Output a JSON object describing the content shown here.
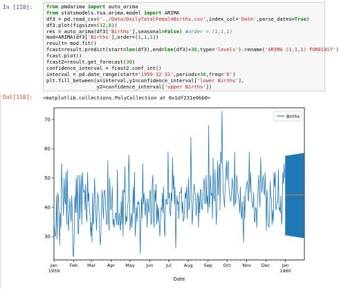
{
  "input_prompt": "In [110]:",
  "output_prompt": "Out[110]:",
  "code_lines": [
    [
      {
        "t": "from",
        "c": "kw"
      },
      {
        "t": " pmdarima ",
        "c": "txt"
      },
      {
        "t": "import",
        "c": "kw"
      },
      {
        "t": " auto_arima",
        "c": "txt"
      }
    ],
    [
      {
        "t": "from",
        "c": "kw"
      },
      {
        "t": " statsmodels.tsa.arima.model ",
        "c": "txt"
      },
      {
        "t": "import",
        "c": "kw"
      },
      {
        "t": " ARIMA",
        "c": "txt"
      }
    ],
    [
      {
        "t": "df3 = pd.read_csv(",
        "c": "txt"
      },
      {
        "t": "'../Data/DailyTotalFemaleBirths.csv'",
        "c": "str"
      },
      {
        "t": ",index_col=",
        "c": "txt"
      },
      {
        "t": "'Date'",
        "c": "str"
      },
      {
        "t": ",parse_dates=",
        "c": "txt"
      },
      {
        "t": "True",
        "c": "kw"
      },
      {
        "t": ")",
        "c": "txt"
      }
    ],
    [
      {
        "t": "df3.plot(figsize=(",
        "c": "txt"
      },
      {
        "t": "12",
        "c": "num"
      },
      {
        "t": ",",
        "c": "txt"
      },
      {
        "t": "8",
        "c": "num"
      },
      {
        "t": "))",
        "c": "txt"
      }
    ],
    [
      {
        "t": "res = auto_arima(df3[",
        "c": "txt"
      },
      {
        "t": "'Births'",
        "c": "str"
      },
      {
        "t": "],seasonal=",
        "c": "txt"
      },
      {
        "t": "False",
        "c": "kw"
      },
      {
        "t": ") ",
        "c": "txt"
      },
      {
        "t": "#order = (1,1,1)",
        "c": "cmt"
      }
    ],
    [
      {
        "t": "mod=ARIMA(df3[",
        "c": "txt"
      },
      {
        "t": "'Births'",
        "c": "str"
      },
      {
        "t": "],order=(",
        "c": "txt"
      },
      {
        "t": "1",
        "c": "num"
      },
      {
        "t": ",",
        "c": "txt"
      },
      {
        "t": "1",
        "c": "num"
      },
      {
        "t": ",",
        "c": "txt"
      },
      {
        "t": "1",
        "c": "num"
      },
      {
        "t": "))",
        "c": "txt"
      }
    ],
    [
      {
        "t": "result= mod.fit()",
        "c": "txt"
      }
    ],
    [
      {
        "t": "fcast=result.predict(start=",
        "c": "txt"
      },
      {
        "t": "len",
        "c": "kw"
      },
      {
        "t": "(df3),end=",
        "c": "txt"
      },
      {
        "t": "len",
        "c": "kw"
      },
      {
        "t": "(df3)+",
        "c": "txt"
      },
      {
        "t": "30",
        "c": "num"
      },
      {
        "t": ",type=",
        "c": "txt"
      },
      {
        "t": "'levels'",
        "c": "str"
      },
      {
        "t": ").rename(",
        "c": "txt"
      },
      {
        "t": "'ARIMA (1,1,1) FORECAST'",
        "c": "str"
      },
      {
        "t": ")",
        "c": "txt"
      }
    ],
    [
      {
        "t": "fcast.plot()",
        "c": "txt"
      }
    ],
    [
      {
        "t": "fcast2=result.get_forecast(",
        "c": "txt"
      },
      {
        "t": "30",
        "c": "num"
      },
      {
        "t": ")",
        "c": "txt"
      }
    ],
    [
      {
        "t": "confidence_interval = fcast2.conf_int()",
        "c": "txt"
      }
    ],
    [
      {
        "t": "interval = pd.date_range(start=",
        "c": "txt"
      },
      {
        "t": "'1959-12-31'",
        "c": "str"
      },
      {
        "t": ",periods=",
        "c": "txt"
      },
      {
        "t": "30",
        "c": "num"
      },
      {
        "t": ",freq=",
        "c": "txt"
      },
      {
        "t": "'D'",
        "c": "str"
      },
      {
        "t": ")",
        "c": "txt"
      }
    ],
    [
      {
        "t": "plt.fill_between(x=interval,y1=confidence_interval[",
        "c": "txt"
      },
      {
        "t": "'lower Births'",
        "c": "str"
      },
      {
        "t": "],",
        "c": "txt"
      }
    ],
    [
      {
        "t": "                 y2=confidence_interval[",
        "c": "txt"
      },
      {
        "t": "'upper Births'",
        "c": "str"
      },
      {
        "t": "])",
        "c": "txt"
      }
    ]
  ],
  "output_text": "<matplotlib.collections.PolyCollection at 0x1df231e0bb0>",
  "colors": {
    "line": "#1f77b4",
    "fill": "#1f77b4",
    "forecast": "#ff7f0e"
  },
  "chart_data": {
    "type": "line",
    "xlabel": "Date",
    "ylabel": "",
    "ylim": [
      22,
      74
    ],
    "yticks": [
      30,
      40,
      50,
      60,
      70
    ],
    "x_range": [
      0,
      395
    ],
    "x_ticks": [
      {
        "label": "Jan",
        "sub": "1959",
        "day": 0
      },
      {
        "label": "Feb",
        "sub": "",
        "day": 31
      },
      {
        "label": "Mar",
        "sub": "",
        "day": 59
      },
      {
        "label": "Apr",
        "sub": "",
        "day": 90
      },
      {
        "label": "May",
        "sub": "",
        "day": 120
      },
      {
        "label": "Jun",
        "sub": "",
        "day": 151
      },
      {
        "label": "Jul",
        "sub": "",
        "day": 181
      },
      {
        "label": "Aug",
        "sub": "",
        "day": 212
      },
      {
        "label": "Sep",
        "sub": "",
        "day": 243
      },
      {
        "label": "Oct",
        "sub": "",
        "day": 273
      },
      {
        "label": "Nov",
        "sub": "",
        "day": 304
      },
      {
        "label": "Dec",
        "sub": "",
        "day": 334
      },
      {
        "label": "Jan",
        "sub": "1960",
        "day": 365
      }
    ],
    "legend": {
      "entries": [
        "Births"
      ],
      "placement": "top-right"
    },
    "series": [
      {
        "name": "Births",
        "values": [
          35,
          32,
          30,
          31,
          44,
          29,
          45,
          43,
          38,
          27,
          38,
          33,
          55,
          47,
          45,
          37,
          50,
          43,
          41,
          52,
          34,
          53,
          39,
          32,
          37,
          43,
          39,
          35,
          44,
          38,
          24,
          23,
          31,
          44,
          38,
          50,
          38,
          51,
          31,
          31,
          51,
          36,
          45,
          51,
          34,
          52,
          47,
          45,
          46,
          39,
          48,
          37,
          35,
          52,
          42,
          45,
          39,
          37,
          30,
          35,
          28,
          45,
          34,
          36,
          50,
          44,
          39,
          32,
          39,
          45,
          43,
          39,
          31,
          27,
          30,
          42,
          46,
          41,
          36,
          45,
          46,
          43,
          38,
          34,
          35,
          56,
          36,
          32,
          50,
          41,
          39,
          41,
          47,
          34,
          36,
          33,
          35,
          38,
          38,
          34,
          53,
          34,
          34,
          38,
          35,
          32,
          42,
          34,
          46,
          30,
          46,
          45,
          54,
          34,
          37,
          35,
          40,
          42,
          58,
          51,
          32,
          35,
          38,
          33,
          39,
          47,
          38,
          52,
          30,
          34,
          40,
          35,
          42,
          41,
          42,
          38,
          24,
          34,
          43,
          36,
          55,
          41,
          45,
          41,
          37,
          43,
          39,
          33,
          43,
          40,
          38,
          45,
          46,
          34,
          35,
          48,
          51,
          36,
          33,
          46,
          42,
          48,
          34,
          41,
          35,
          40,
          34,
          30,
          36,
          40,
          39,
          45,
          38,
          47,
          33,
          30,
          42,
          43,
          41,
          41,
          59,
          43,
          45,
          38,
          37,
          45,
          42,
          57,
          46,
          51,
          41,
          47,
          26,
          35,
          44,
          41,
          42,
          36,
          45,
          45,
          45,
          47,
          38,
          42,
          35,
          36,
          39,
          45,
          43,
          47,
          36,
          41,
          50,
          39,
          41,
          46,
          64,
          45,
          34,
          38,
          44,
          48,
          46,
          44,
          37,
          39,
          44,
          45,
          33,
          44,
          38,
          46,
          46,
          40,
          39,
          44,
          48,
          50,
          41,
          42,
          51,
          41,
          44,
          38,
          68,
          40,
          42,
          51,
          44,
          45,
          36,
          57,
          44,
          42,
          53,
          42,
          34,
          40,
          56,
          44,
          53,
          55,
          39,
          59,
          55,
          73,
          55,
          44,
          43,
          40,
          47,
          51,
          56,
          49,
          54,
          56,
          47,
          44,
          43,
          42,
          45,
          50,
          48,
          43,
          40,
          59,
          41,
          42,
          51,
          49,
          45,
          43,
          42,
          38,
          47,
          38,
          36,
          42,
          35,
          28,
          44,
          36,
          45,
          46,
          48,
          49,
          43,
          42,
          59,
          45,
          52,
          46,
          42,
          40,
          40,
          45,
          35,
          35,
          40,
          39,
          33,
          42,
          47,
          51,
          44,
          40,
          57,
          49,
          45,
          49,
          51,
          46,
          44,
          52,
          45,
          32,
          46,
          41,
          34,
          33,
          36,
          49,
          43,
          43,
          34,
          39,
          35,
          52,
          47,
          52,
          39,
          40,
          42,
          42,
          53,
          39,
          40,
          38,
          44,
          34,
          37,
          52,
          48,
          55,
          50
        ]
      }
    ],
    "forecast": {
      "start_day": 365,
      "end_day": 395,
      "value": 44.2
    },
    "confidence_interval": {
      "start_day": 365,
      "end_day": 394,
      "lower_start": 30.5,
      "lower_end": 29.5,
      "upper_start": 57.5,
      "upper_end": 58.5
    }
  }
}
